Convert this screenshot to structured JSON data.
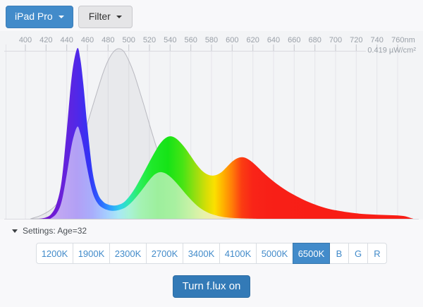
{
  "header": {
    "device_button_label": "iPad Pro",
    "filter_button_label": "Filter"
  },
  "chart_data": {
    "type": "area",
    "x_unit": "nm",
    "x_range": [
      400,
      776
    ],
    "x_tick_values": [
      400,
      420,
      440,
      460,
      480,
      500,
      520,
      540,
      560,
      580,
      600,
      620,
      640,
      660,
      680,
      700,
      720,
      740,
      760
    ],
    "x_tick_labels": [
      "400",
      "420",
      "440",
      "460",
      "480",
      "500",
      "520",
      "540",
      "560",
      "580",
      "600",
      "620",
      "640",
      "660",
      "680",
      "700",
      "720",
      "740",
      "760nm"
    ],
    "y_axis_max_label": "0.419 µW/cm²",
    "grid": true,
    "legend_position": "none",
    "series": [
      {
        "name": "melanopic-sensitivity",
        "style": "gray-outline",
        "points": [
          [
            405,
            0
          ],
          [
            415,
            0.02
          ],
          [
            425,
            0.055
          ],
          [
            432,
            0.1
          ],
          [
            440,
            0.19
          ],
          [
            445,
            0.27
          ],
          [
            450,
            0.36
          ],
          [
            455,
            0.46
          ],
          [
            460,
            0.56
          ],
          [
            465,
            0.66
          ],
          [
            470,
            0.76
          ],
          [
            475,
            0.855
          ],
          [
            480,
            0.93
          ],
          [
            485,
            0.98
          ],
          [
            490,
            1.0
          ],
          [
            495,
            0.985
          ],
          [
            500,
            0.93
          ],
          [
            505,
            0.855
          ],
          [
            510,
            0.76
          ],
          [
            515,
            0.66
          ],
          [
            520,
            0.555
          ],
          [
            525,
            0.455
          ],
          [
            530,
            0.36
          ],
          [
            535,
            0.275
          ],
          [
            540,
            0.2
          ],
          [
            545,
            0.14
          ],
          [
            550,
            0.095
          ],
          [
            555,
            0.062
          ],
          [
            560,
            0.04
          ],
          [
            565,
            0.025
          ],
          [
            570,
            0.015
          ],
          [
            578,
            0.007
          ],
          [
            588,
            0.002
          ],
          [
            598,
            0
          ]
        ]
      },
      {
        "name": "display-spectrum",
        "style": "spectral",
        "points": [
          [
            413,
            0
          ],
          [
            420,
            0.008
          ],
          [
            425,
            0.028
          ],
          [
            430,
            0.085
          ],
          [
            435,
            0.22
          ],
          [
            440,
            0.52
          ],
          [
            445,
            0.845
          ],
          [
            450,
            1.0
          ],
          [
            453,
            0.945
          ],
          [
            456,
            0.795
          ],
          [
            460,
            0.54
          ],
          [
            465,
            0.275
          ],
          [
            470,
            0.15
          ],
          [
            475,
            0.102
          ],
          [
            480,
            0.084
          ],
          [
            485,
            0.078
          ],
          [
            490,
            0.082
          ],
          [
            495,
            0.096
          ],
          [
            500,
            0.128
          ],
          [
            505,
            0.17
          ],
          [
            510,
            0.222
          ],
          [
            515,
            0.278
          ],
          [
            520,
            0.335
          ],
          [
            525,
            0.39
          ],
          [
            530,
            0.44
          ],
          [
            535,
            0.472
          ],
          [
            540,
            0.485
          ],
          [
            545,
            0.475
          ],
          [
            550,
            0.448
          ],
          [
            555,
            0.412
          ],
          [
            560,
            0.368
          ],
          [
            565,
            0.324
          ],
          [
            570,
            0.288
          ],
          [
            575,
            0.264
          ],
          [
            580,
            0.254
          ],
          [
            585,
            0.258
          ],
          [
            590,
            0.276
          ],
          [
            595,
            0.306
          ],
          [
            600,
            0.336
          ],
          [
            605,
            0.356
          ],
          [
            610,
            0.362
          ],
          [
            615,
            0.352
          ],
          [
            620,
            0.33
          ],
          [
            625,
            0.302
          ],
          [
            630,
            0.272
          ],
          [
            635,
            0.245
          ],
          [
            640,
            0.22
          ],
          [
            645,
            0.197
          ],
          [
            650,
            0.176
          ],
          [
            655,
            0.157
          ],
          [
            660,
            0.14
          ],
          [
            665,
            0.124
          ],
          [
            670,
            0.109
          ],
          [
            675,
            0.096
          ],
          [
            680,
            0.084
          ],
          [
            685,
            0.073
          ],
          [
            690,
            0.064
          ],
          [
            695,
            0.056
          ],
          [
            700,
            0.05
          ],
          [
            710,
            0.04
          ],
          [
            720,
            0.032
          ],
          [
            730,
            0.027
          ],
          [
            740,
            0.024
          ],
          [
            750,
            0.022
          ],
          [
            760,
            0.02
          ],
          [
            767,
            0.015
          ],
          [
            772,
            0.006
          ],
          [
            775,
            0.001
          ]
        ]
      },
      {
        "name": "filtered-spectrum",
        "style": "pastel",
        "points": [
          [
            424,
            0
          ],
          [
            430,
            0.03
          ],
          [
            435,
            0.1
          ],
          [
            440,
            0.26
          ],
          [
            445,
            0.44
          ],
          [
            450,
            0.54
          ],
          [
            453,
            0.505
          ],
          [
            456,
            0.425
          ],
          [
            460,
            0.29
          ],
          [
            465,
            0.155
          ],
          [
            470,
            0.09
          ],
          [
            475,
            0.063
          ],
          [
            480,
            0.051
          ],
          [
            485,
            0.047
          ],
          [
            490,
            0.051
          ],
          [
            495,
            0.061
          ],
          [
            500,
            0.082
          ],
          [
            505,
            0.112
          ],
          [
            510,
            0.148
          ],
          [
            515,
            0.188
          ],
          [
            520,
            0.228
          ],
          [
            525,
            0.26
          ],
          [
            530,
            0.274
          ],
          [
            535,
            0.268
          ],
          [
            540,
            0.248
          ],
          [
            545,
            0.218
          ],
          [
            550,
            0.183
          ],
          [
            555,
            0.147
          ],
          [
            560,
            0.113
          ],
          [
            565,
            0.083
          ],
          [
            570,
            0.059
          ],
          [
            575,
            0.041
          ],
          [
            580,
            0.028
          ],
          [
            585,
            0.019
          ],
          [
            590,
            0.012
          ],
          [
            600,
            0.005
          ],
          [
            612,
            0.002
          ],
          [
            625,
            0
          ]
        ]
      }
    ],
    "spectral_gradient": [
      [
        400,
        "#7a00c8"
      ],
      [
        435,
        "#6a21d8"
      ],
      [
        450,
        "#5128e8"
      ],
      [
        462,
        "#3333f5"
      ],
      [
        472,
        "#2e64ff"
      ],
      [
        482,
        "#2f9dff"
      ],
      [
        492,
        "#2fd2e8"
      ],
      [
        500,
        "#2fe8b0"
      ],
      [
        510,
        "#2cee5f"
      ],
      [
        522,
        "#1fe92a"
      ],
      [
        538,
        "#16e316"
      ],
      [
        552,
        "#46e414"
      ],
      [
        565,
        "#9ade10"
      ],
      [
        575,
        "#d6de06"
      ],
      [
        583,
        "#fbe000"
      ],
      [
        591,
        "#ffb300"
      ],
      [
        600,
        "#ff7d08"
      ],
      [
        609,
        "#fb3d12"
      ],
      [
        620,
        "#f92418"
      ],
      [
        640,
        "#f81f17"
      ],
      [
        775,
        "#f81d15"
      ]
    ],
    "pastel_gradient": [
      [
        430,
        "#c2a8f2"
      ],
      [
        450,
        "#b2a0f5"
      ],
      [
        465,
        "#a8aefc"
      ],
      [
        478,
        "#a6ccff"
      ],
      [
        490,
        "#a8e8f5"
      ],
      [
        500,
        "#a9f2d8"
      ],
      [
        512,
        "#a4f2b2"
      ],
      [
        528,
        "#9def9d"
      ],
      [
        545,
        "#a8f0a0"
      ],
      [
        560,
        "#c8f2a6"
      ],
      [
        572,
        "#e6f2a8"
      ],
      [
        585,
        "#f6eab0"
      ],
      [
        600,
        "#f8d8b0"
      ]
    ]
  },
  "settings_bar": {
    "label": "Settings: Age=32"
  },
  "temperature_buttons": {
    "options": [
      "1200K",
      "1900K",
      "2300K",
      "2700K",
      "3400K",
      "4100K",
      "5000K",
      "6500K",
      "B",
      "G",
      "R"
    ],
    "active": "6500K"
  },
  "power_button_label": "Turn f.lux on",
  "colors": {
    "accent": "#428bca",
    "power_button": "#337ab7",
    "axis_text": "#9aa0a8",
    "grid_line": "#e4e4e9",
    "tick_mark": "#c4c6cc",
    "frame_line": "#d9d9df",
    "plot_bg": "#f3f4f6",
    "melanopic_stroke": "#b9b9c0",
    "melanopic_fill": "rgba(140,140,150,0.10)"
  }
}
